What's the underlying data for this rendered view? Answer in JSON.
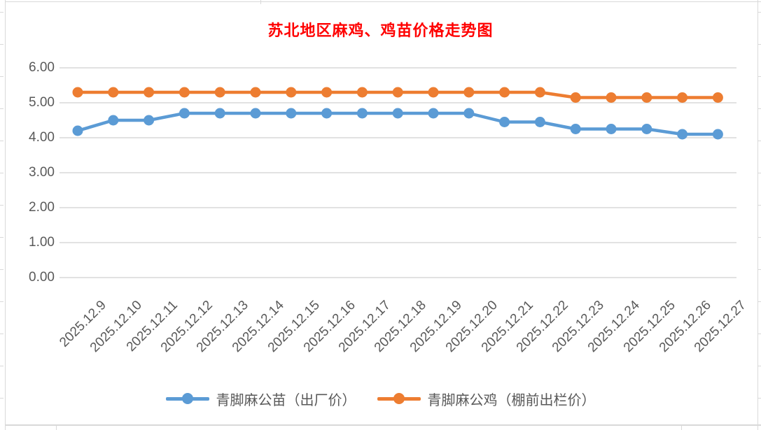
{
  "chart_data": {
    "type": "line",
    "title": "苏北地区麻鸡、鸡苗价格走势图",
    "title_color": "#FF0000",
    "categories": [
      "2025.12.9",
      "2025.12.10",
      "2025.12.11",
      "2025.12.12",
      "2025.12.13",
      "2025.12.14",
      "2025.12.15",
      "2025.12.16",
      "2025.12.17",
      "2025.12.18",
      "2025.12.19",
      "2025.12.20",
      "2025.12.21",
      "2025.12.22",
      "2025.12.23",
      "2025.12.24",
      "2025.12.25",
      "2025.12.26",
      "2025.12.27"
    ],
    "series": [
      {
        "name": "青脚麻公苗（出厂价）",
        "color": "#5B9BD5",
        "values": [
          4.2,
          4.5,
          4.5,
          4.7,
          4.7,
          4.7,
          4.7,
          4.7,
          4.7,
          4.7,
          4.7,
          4.7,
          4.45,
          4.45,
          4.25,
          4.25,
          4.25,
          4.1,
          4.1
        ]
      },
      {
        "name": "青脚麻公鸡（棚前出栏价）",
        "color": "#ED7D31",
        "values": [
          5.3,
          5.3,
          5.3,
          5.3,
          5.3,
          5.3,
          5.3,
          5.3,
          5.3,
          5.3,
          5.3,
          5.3,
          5.3,
          5.3,
          5.15,
          5.15,
          5.15,
          5.15,
          5.15
        ]
      }
    ],
    "ylim": [
      0,
      6
    ],
    "ytick_labels": [
      "0.00",
      "1.00",
      "2.00",
      "3.00",
      "4.00",
      "5.00",
      "6.00"
    ],
    "grid": true,
    "gridline_color": "#D9D9D9",
    "axis_text_color": "#595959",
    "legend_position": "bottom"
  }
}
